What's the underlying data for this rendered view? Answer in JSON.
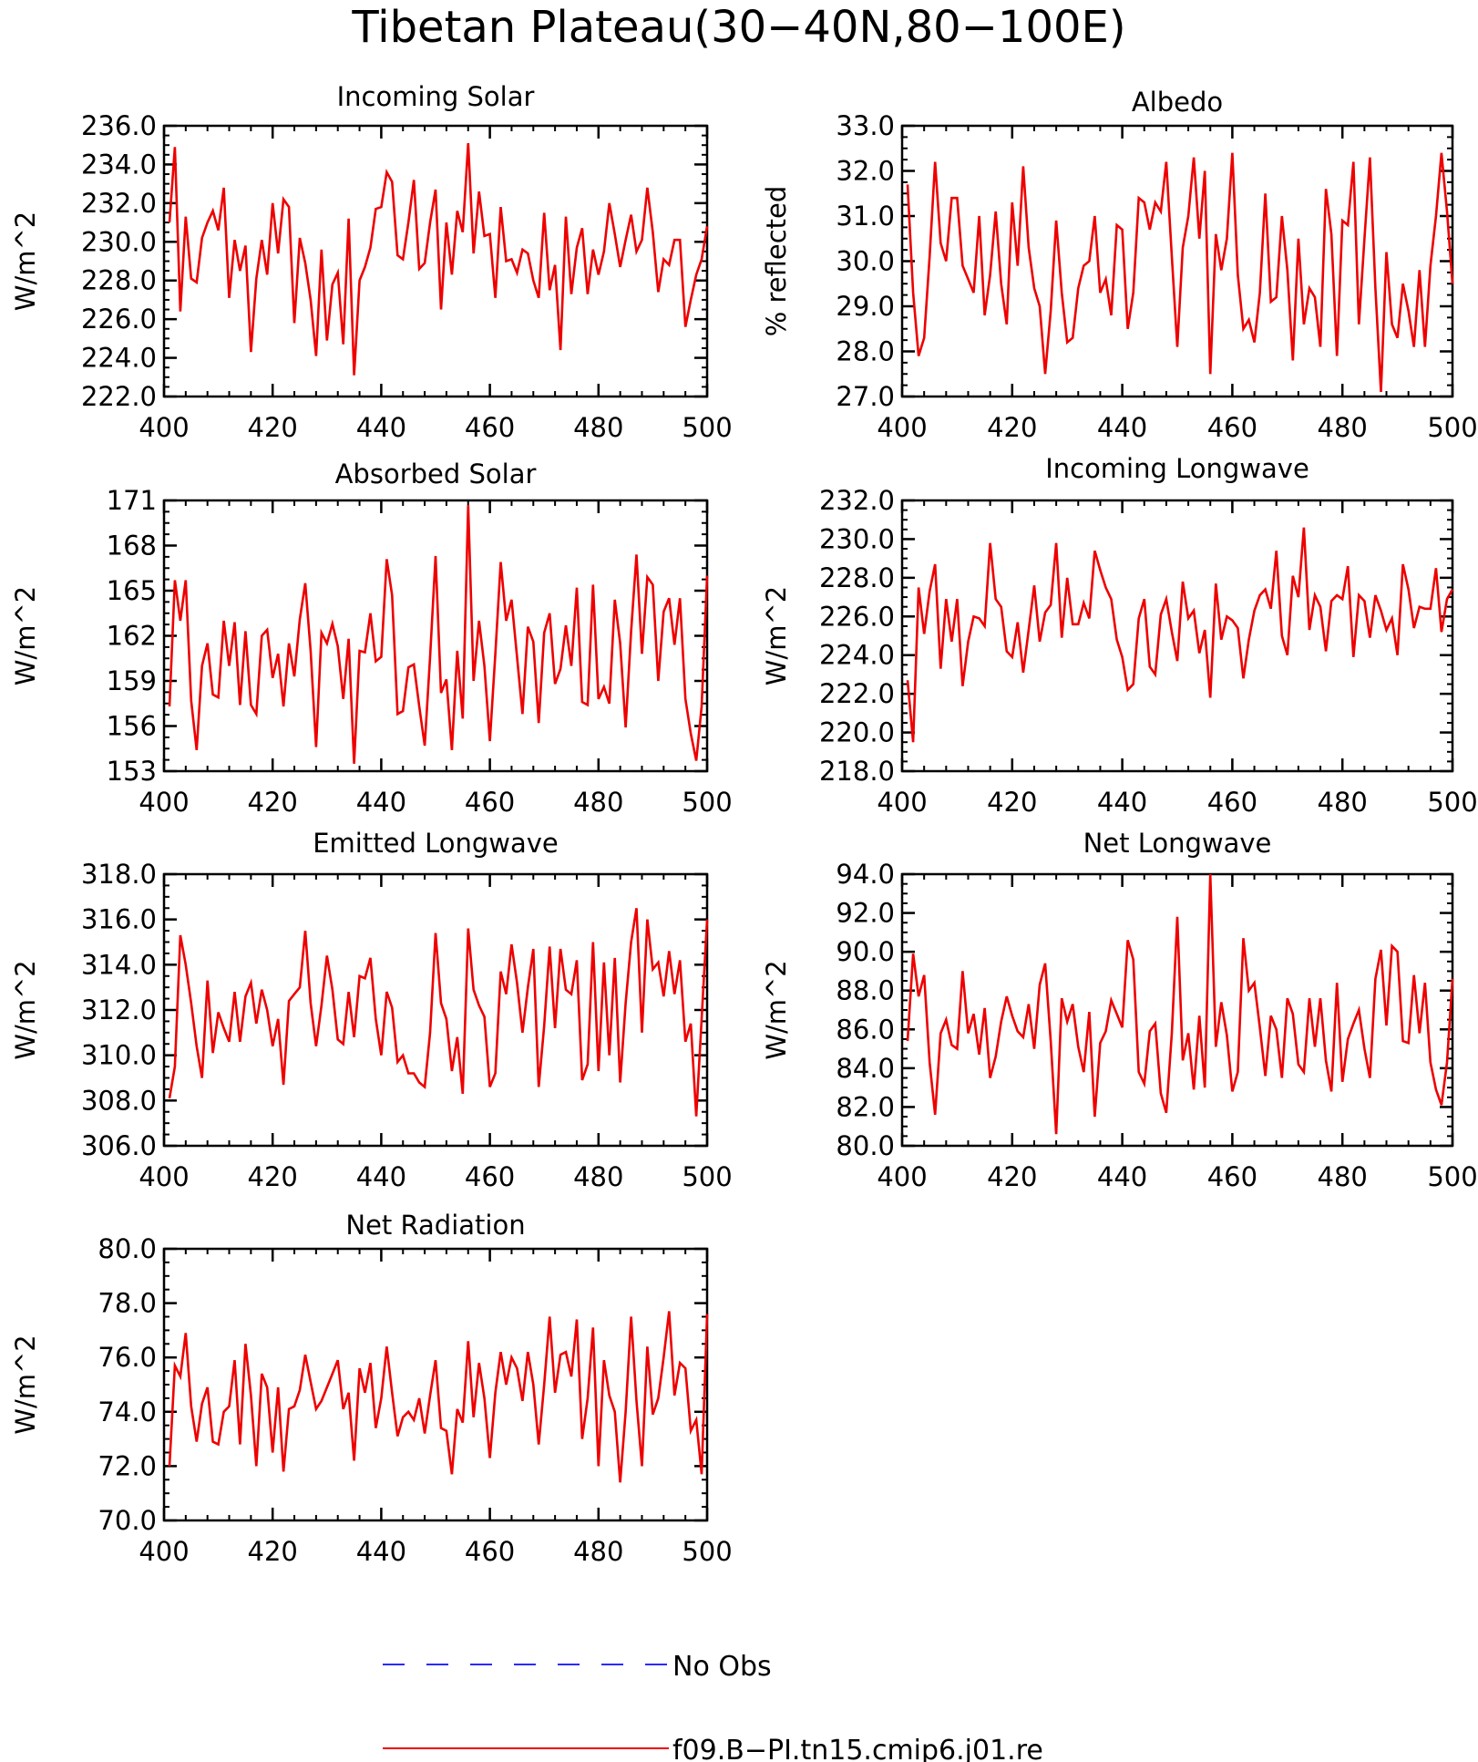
{
  "figure": {
    "title": "Tibetan Plateau(30−40N,80−100E)"
  },
  "legend": {
    "items": [
      {
        "label": "No Obs",
        "color": "#2a2aff",
        "style": "dashed"
      },
      {
        "label": "f09.B−PI.tn15.cmip6.j01.re",
        "color": "#ee0000",
        "style": "solid"
      }
    ]
  },
  "chart_data": [
    {
      "type": "line",
      "title": "Incoming Solar",
      "ylabel": "W/m^2",
      "xlabel": "",
      "xlim": [
        400,
        500
      ],
      "ylim": [
        222,
        236
      ],
      "xticks": [
        400,
        420,
        440,
        460,
        480,
        500
      ],
      "yticks": [
        222,
        224,
        226,
        228,
        230,
        232,
        234,
        236
      ],
      "ytick_labels": [
        "222.0",
        "224.0",
        "226.0",
        "228.0",
        "230.0",
        "232.0",
        "234.0",
        "236.0"
      ],
      "series": [
        {
          "color": "#ee0000",
          "x_start": 401,
          "x_step": 1,
          "values": [
            231.0,
            234.9,
            226.4,
            231.3,
            228.1,
            227.9,
            230.2,
            231.0,
            231.6,
            230.6,
            232.8,
            227.1,
            230.1,
            228.5,
            229.8,
            224.3,
            228.1,
            230.1,
            228.3,
            232.0,
            229.4,
            232.2,
            231.8,
            225.8,
            230.2,
            228.9,
            227.0,
            224.1,
            229.6,
            224.9,
            227.8,
            228.4,
            224.7,
            231.2,
            223.1,
            228.0,
            228.7,
            229.7,
            231.7,
            231.8,
            233.6,
            233.1,
            229.3,
            229.1,
            231.0,
            233.2,
            228.6,
            228.9,
            231.0,
            232.7,
            226.5,
            231.0,
            228.3,
            231.6,
            230.5,
            235.1,
            229.4,
            232.6,
            230.3,
            230.4,
            227.1,
            231.8,
            229.0,
            229.1,
            228.4,
            229.6,
            229.4,
            228.0,
            227.1,
            231.5,
            227.5,
            228.8,
            224.4,
            231.3,
            227.3,
            229.7,
            230.7,
            227.3,
            229.6,
            228.3,
            229.5,
            232.0,
            230.4,
            228.7,
            230.1,
            231.4,
            229.5,
            230.1,
            232.8,
            230.5,
            227.4,
            229.1,
            228.8,
            230.1,
            230.1,
            225.6,
            227.0,
            228.3,
            229.1,
            230.8
          ]
        }
      ]
    },
    {
      "type": "line",
      "title": "Albedo",
      "ylabel": "% reflected",
      "xlabel": "",
      "xlim": [
        400,
        500
      ],
      "ylim": [
        27,
        33
      ],
      "xticks": [
        400,
        420,
        440,
        460,
        480,
        500
      ],
      "yticks": [
        27,
        28,
        29,
        30,
        31,
        32,
        33
      ],
      "ytick_labels": [
        "27.0",
        "28.0",
        "29.0",
        "30.0",
        "31.0",
        "32.0",
        "33.0"
      ],
      "series": [
        {
          "color": "#ee0000",
          "x_start": 401,
          "x_step": 1,
          "values": [
            31.7,
            29.3,
            27.9,
            28.3,
            30.1,
            32.2,
            30.4,
            30.0,
            31.4,
            31.4,
            29.9,
            29.6,
            29.3,
            31.0,
            28.8,
            29.7,
            31.1,
            29.5,
            28.6,
            31.3,
            29.9,
            32.1,
            30.3,
            29.4,
            29.0,
            27.5,
            28.9,
            30.9,
            29.3,
            28.2,
            28.3,
            29.4,
            29.9,
            30.0,
            31.0,
            29.3,
            29.6,
            28.8,
            30.8,
            30.7,
            28.5,
            29.3,
            31.4,
            31.3,
            30.7,
            31.3,
            31.1,
            32.2,
            30.1,
            28.1,
            30.3,
            31.0,
            32.3,
            30.5,
            32.0,
            27.5,
            30.6,
            29.8,
            30.5,
            32.4,
            29.7,
            28.5,
            28.7,
            28.2,
            29.3,
            31.5,
            29.1,
            29.2,
            31.0,
            29.8,
            27.8,
            30.5,
            28.6,
            29.4,
            29.2,
            28.1,
            31.6,
            30.6,
            27.9,
            30.9,
            30.8,
            32.2,
            28.6,
            30.5,
            32.3,
            29.4,
            27.1,
            30.2,
            28.6,
            28.3,
            29.5,
            28.9,
            28.1,
            29.8,
            28.1,
            29.9,
            31.0,
            32.4,
            31.1,
            29.5
          ]
        }
      ]
    },
    {
      "type": "line",
      "title": "Absorbed Solar",
      "ylabel": "W/m^2",
      "xlabel": "",
      "xlim": [
        400,
        500
      ],
      "ylim": [
        153,
        171
      ],
      "xticks": [
        400,
        420,
        440,
        460,
        480,
        500
      ],
      "yticks": [
        153,
        156,
        159,
        162,
        165,
        168,
        171
      ],
      "ytick_labels": [
        "153",
        "156",
        "159",
        "162",
        "165",
        "168",
        "171"
      ],
      "series": [
        {
          "color": "#ee0000",
          "x_start": 401,
          "x_step": 1,
          "values": [
            157.3,
            165.7,
            163.0,
            165.7,
            157.7,
            154.4,
            160.0,
            161.5,
            158.1,
            157.9,
            163.0,
            160.0,
            162.9,
            157.4,
            162.3,
            157.4,
            156.8,
            162.0,
            162.4,
            159.2,
            160.8,
            157.3,
            161.5,
            159.3,
            163.1,
            165.5,
            161.0,
            154.6,
            162.2,
            161.5,
            162.8,
            161.3,
            157.8,
            161.8,
            153.5,
            161.0,
            160.9,
            163.5,
            160.3,
            160.6,
            167.1,
            164.7,
            156.8,
            157.0,
            159.9,
            160.1,
            157.3,
            154.7,
            160.6,
            167.3,
            158.2,
            159.1,
            154.4,
            161.0,
            156.5,
            170.7,
            159.0,
            163.0,
            160.0,
            155.0,
            160.8,
            166.9,
            163.0,
            164.4,
            160.6,
            156.8,
            162.6,
            161.6,
            156.2,
            162.2,
            163.5,
            158.8,
            159.8,
            162.7,
            160.0,
            165.2,
            157.6,
            157.4,
            165.4,
            157.8,
            158.6,
            157.5,
            164.4,
            161.5,
            155.9,
            162.3,
            167.4,
            160.8,
            165.9,
            165.4,
            159.0,
            163.6,
            164.5,
            161.4,
            164.5,
            157.8,
            155.5,
            153.7,
            157.3,
            166.0
          ]
        }
      ]
    },
    {
      "type": "line",
      "title": "Incoming Longwave",
      "ylabel": "W/m^2",
      "xlabel": "",
      "xlim": [
        400,
        500
      ],
      "ylim": [
        218,
        232
      ],
      "xticks": [
        400,
        420,
        440,
        460,
        480,
        500
      ],
      "yticks": [
        218,
        220,
        222,
        224,
        226,
        228,
        230,
        232
      ],
      "ytick_labels": [
        "218.0",
        "220.0",
        "222.0",
        "224.0",
        "226.0",
        "228.0",
        "230.0",
        "232.0"
      ],
      "series": [
        {
          "color": "#ee0000",
          "x_start": 401,
          "x_step": 1,
          "values": [
            222.7,
            219.5,
            227.5,
            225.1,
            227.3,
            228.7,
            223.3,
            226.9,
            224.7,
            226.9,
            222.4,
            224.7,
            226.0,
            225.9,
            225.5,
            229.8,
            226.9,
            226.5,
            224.2,
            223.9,
            225.7,
            223.1,
            225.3,
            227.6,
            224.7,
            226.2,
            226.6,
            229.8,
            224.9,
            228.0,
            225.6,
            225.6,
            226.7,
            225.9,
            229.4,
            228.4,
            227.5,
            226.9,
            224.8,
            223.9,
            222.2,
            222.5,
            225.9,
            226.9,
            223.4,
            223.0,
            226.1,
            226.9,
            225.2,
            223.7,
            227.8,
            225.9,
            226.3,
            224.1,
            225.3,
            221.8,
            227.7,
            224.8,
            226.0,
            225.8,
            225.4,
            222.8,
            224.8,
            226.3,
            227.1,
            227.4,
            226.4,
            229.4,
            225.0,
            224.0,
            228.1,
            227.0,
            230.6,
            225.3,
            227.1,
            226.5,
            224.2,
            226.8,
            227.1,
            226.9,
            228.6,
            223.9,
            227.1,
            226.8,
            224.9,
            227.1,
            226.3,
            225.3,
            225.9,
            224.0,
            228.7,
            227.4,
            225.4,
            226.5,
            226.4,
            226.4,
            228.5,
            225.2,
            226.9,
            227.4
          ]
        }
      ]
    },
    {
      "type": "line",
      "title": "Emitted Longwave",
      "ylabel": "W/m^2",
      "xlabel": "",
      "xlim": [
        400,
        500
      ],
      "ylim": [
        306,
        318
      ],
      "xticks": [
        400,
        420,
        440,
        460,
        480,
        500
      ],
      "yticks": [
        306,
        308,
        310,
        312,
        314,
        316,
        318
      ],
      "ytick_labels": [
        "306.0",
        "308.0",
        "310.0",
        "312.0",
        "314.0",
        "316.0",
        "318.0"
      ],
      "series": [
        {
          "color": "#ee0000",
          "x_start": 401,
          "x_step": 1,
          "values": [
            308.1,
            309.5,
            315.3,
            314.0,
            312.3,
            310.4,
            309.0,
            313.3,
            310.1,
            311.9,
            311.2,
            310.6,
            312.8,
            310.6,
            312.6,
            313.2,
            311.4,
            312.9,
            312.0,
            310.4,
            311.6,
            308.7,
            312.4,
            312.7,
            313.0,
            315.5,
            312.3,
            310.4,
            312.2,
            314.4,
            312.9,
            310.7,
            310.5,
            312.8,
            310.8,
            313.5,
            313.4,
            314.3,
            311.6,
            310.0,
            312.8,
            312.1,
            309.7,
            310.0,
            309.2,
            309.2,
            308.8,
            308.6,
            311.0,
            315.4,
            312.3,
            311.6,
            309.3,
            310.8,
            308.3,
            315.6,
            312.9,
            312.2,
            311.7,
            308.6,
            309.2,
            313.7,
            312.7,
            314.9,
            313.2,
            311.0,
            313.0,
            314.7,
            308.6,
            311.3,
            314.8,
            311.2,
            314.7,
            312.9,
            312.7,
            314.2,
            308.9,
            309.6,
            315.0,
            309.3,
            314.1,
            310.0,
            314.3,
            308.8,
            312.3,
            315.0,
            316.5,
            311.0,
            316.0,
            313.8,
            314.1,
            312.6,
            314.6,
            312.7,
            314.2,
            310.6,
            311.4,
            307.3,
            311.6,
            316.0
          ]
        }
      ]
    },
    {
      "type": "line",
      "title": "Net Longwave",
      "ylabel": "W/m^2",
      "xlabel": "",
      "xlim": [
        400,
        500
      ],
      "ylim": [
        80,
        94
      ],
      "xticks": [
        400,
        420,
        440,
        460,
        480,
        500
      ],
      "yticks": [
        80,
        82,
        84,
        86,
        88,
        90,
        92,
        94
      ],
      "ytick_labels": [
        "80.0",
        "82.0",
        "84.0",
        "86.0",
        "88.0",
        "90.0",
        "92.0",
        "94.0"
      ],
      "series": [
        {
          "color": "#ee0000",
          "x_start": 401,
          "x_step": 1,
          "values": [
            85.4,
            89.9,
            87.7,
            88.8,
            84.3,
            81.6,
            85.8,
            86.5,
            85.2,
            85.0,
            89.0,
            85.8,
            86.8,
            84.7,
            87.1,
            83.5,
            84.6,
            86.4,
            87.7,
            86.7,
            85.9,
            85.6,
            87.3,
            85.0,
            88.3,
            89.4,
            85.4,
            80.6,
            87.6,
            86.4,
            87.3,
            85.1,
            83.8,
            86.9,
            81.5,
            85.3,
            85.9,
            87.5,
            86.8,
            86.1,
            90.6,
            89.6,
            83.8,
            83.2,
            85.9,
            86.3,
            82.7,
            81.7,
            85.8,
            91.8,
            84.4,
            85.8,
            82.9,
            86.7,
            83.0,
            94.0,
            85.1,
            87.4,
            85.7,
            82.8,
            83.8,
            90.7,
            88.0,
            88.4,
            86.1,
            83.6,
            86.7,
            86.0,
            83.5,
            87.6,
            86.8,
            84.2,
            83.8,
            87.6,
            85.1,
            87.6,
            84.4,
            82.8,
            88.4,
            83.3,
            85.5,
            86.3,
            87.0,
            85.0,
            83.5,
            88.6,
            90.1,
            86.2,
            90.3,
            90.0,
            85.4,
            85.3,
            88.8,
            85.8,
            88.4,
            84.3,
            82.9,
            82.1,
            84.3,
            88.6
          ]
        }
      ]
    },
    {
      "type": "line",
      "title": "Net Radiation",
      "ylabel": "W/m^2",
      "xlabel": "",
      "xlim": [
        400,
        500
      ],
      "ylim": [
        70,
        80
      ],
      "xticks": [
        400,
        420,
        440,
        460,
        480,
        500
      ],
      "yticks": [
        70,
        72,
        74,
        76,
        78,
        80
      ],
      "ytick_labels": [
        "70.0",
        "72.0",
        "74.0",
        "76.0",
        "78.0",
        "80.0"
      ],
      "series": [
        {
          "color": "#ee0000",
          "x_start": 401,
          "x_step": 1,
          "values": [
            72.0,
            75.7,
            75.3,
            76.9,
            74.2,
            72.9,
            74.3,
            74.9,
            72.9,
            72.8,
            74.0,
            74.2,
            75.9,
            72.8,
            76.5,
            74.6,
            72.0,
            75.4,
            74.9,
            72.5,
            74.9,
            71.8,
            74.1,
            74.2,
            74.8,
            76.1,
            75.1,
            74.1,
            74.4,
            74.9,
            75.4,
            75.9,
            74.1,
            74.7,
            72.2,
            75.6,
            74.7,
            75.8,
            73.4,
            74.5,
            76.4,
            74.7,
            73.1,
            73.8,
            74.0,
            73.7,
            74.5,
            73.2,
            74.6,
            75.9,
            73.4,
            73.3,
            71.7,
            74.1,
            73.6,
            76.6,
            73.8,
            75.8,
            74.5,
            72.3,
            74.7,
            76.2,
            75.0,
            76.0,
            75.6,
            74.4,
            76.2,
            75.0,
            72.8,
            75.0,
            77.5,
            74.7,
            76.1,
            76.2,
            75.3,
            77.4,
            73.0,
            74.5,
            77.1,
            72.0,
            75.9,
            74.6,
            74.0,
            71.4,
            74.0,
            77.5,
            74.4,
            72.0,
            76.4,
            73.9,
            74.5,
            76.0,
            77.7,
            74.6,
            75.8,
            75.6,
            73.3,
            73.7,
            71.7,
            77.6
          ]
        }
      ]
    }
  ]
}
